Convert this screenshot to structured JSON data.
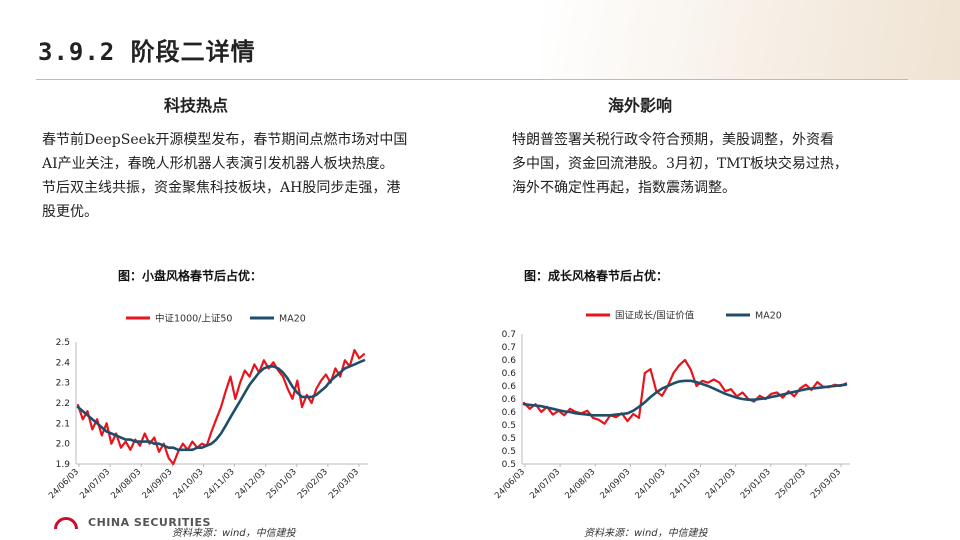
{
  "header": {
    "section_number": "3.9.2",
    "title": "阶段二详情"
  },
  "left": {
    "heading": "科技热点",
    "paragraph_lines": [
      "春节前DeepSeek开源模型发布，春节期间点燃市场对中国",
      "AI产业关注，春晚人形机器人表演引发机器人板块热度。",
      "节后双主线共振，资金聚焦科技板块，AH股同步走强，港",
      "股更优。"
    ],
    "figure_caption": "图：小盘风格春节后占优：",
    "source": "资料来源：wind，中信建投"
  },
  "right": {
    "heading": "海外影响",
    "paragraph_lines": [
      "特朗普签署关税行政令符合预期，美股调整，外资看",
      "多中国，资金回流港股。3月初，TMT板块交易过热，",
      "海外不确定性再起，指数震荡调整。"
    ],
    "figure_caption": "图：成长风格春节后占优：",
    "source": "资料来源：wind，中信建投"
  },
  "footer": {
    "logo_text": "CHINA SECURITIES"
  },
  "colors": {
    "ratio_line": "#e8141c",
    "ma20_line": "#1f4e6b"
  },
  "chart_data": [
    {
      "type": "line",
      "title": "",
      "ylim": [
        1.9,
        2.5
      ],
      "y_ticks": [
        "1.9",
        "2.0",
        "2.1",
        "2.2",
        "2.3",
        "2.4",
        "2.5"
      ],
      "x_ticks": [
        "24/06/03",
        "24/07/03",
        "24/08/03",
        "24/09/03",
        "24/10/03",
        "24/11/03",
        "24/12/03",
        "25/01/03",
        "25/02/03",
        "25/03/03"
      ],
      "series": [
        {
          "name": "中证1000/上证50",
          "color": "#e8141c",
          "values": [
            2.19,
            2.12,
            2.16,
            2.07,
            2.12,
            2.04,
            2.1,
            2.0,
            2.05,
            1.98,
            2.01,
            1.97,
            2.02,
            1.99,
            2.05,
            2.0,
            2.03,
            1.96,
            2.0,
            1.93,
            1.9,
            1.96,
            2.0,
            1.97,
            2.01,
            1.98,
            2.0,
            1.99,
            2.06,
            2.12,
            2.18,
            2.26,
            2.33,
            2.22,
            2.3,
            2.36,
            2.33,
            2.39,
            2.35,
            2.41,
            2.37,
            2.4,
            2.36,
            2.33,
            2.27,
            2.22,
            2.31,
            2.18,
            2.24,
            2.2,
            2.27,
            2.31,
            2.34,
            2.3,
            2.37,
            2.33,
            2.41,
            2.38,
            2.46,
            2.42,
            2.44
          ]
        },
        {
          "name": "MA20",
          "color": "#1f4e6b",
          "values": [
            2.18,
            2.16,
            2.14,
            2.12,
            2.1,
            2.08,
            2.06,
            2.05,
            2.04,
            2.03,
            2.02,
            2.02,
            2.01,
            2.01,
            2.01,
            2.01,
            2.0,
            2.0,
            1.99,
            1.98,
            1.98,
            1.97,
            1.97,
            1.97,
            1.97,
            1.98,
            1.98,
            1.99,
            2.0,
            2.02,
            2.05,
            2.09,
            2.13,
            2.17,
            2.21,
            2.25,
            2.29,
            2.32,
            2.35,
            2.37,
            2.38,
            2.38,
            2.37,
            2.35,
            2.32,
            2.28,
            2.25,
            2.23,
            2.23,
            2.23,
            2.24,
            2.26,
            2.28,
            2.31,
            2.33,
            2.35,
            2.37,
            2.38,
            2.39,
            2.4,
            2.41
          ]
        }
      ]
    },
    {
      "type": "line",
      "title": "",
      "ylim": [
        0.5,
        0.7
      ],
      "y_ticks": [
        "0.5",
        "0.5",
        "0.5",
        "0.5",
        "0.6",
        "0.6",
        "0.6",
        "0.6",
        "0.6",
        "0.7",
        "0.7"
      ],
      "x_ticks": [
        "24/06/03",
        "24/07/03",
        "24/08/03",
        "24/09/03",
        "24/10/03",
        "24/11/03",
        "24/12/03",
        "25/01/03",
        "25/02/03",
        "25/03/03"
      ],
      "series": [
        {
          "name": "国证成长/国证价值",
          "color": "#e8141c",
          "values": [
            0.594,
            0.585,
            0.592,
            0.58,
            0.588,
            0.576,
            0.582,
            0.575,
            0.585,
            0.58,
            0.578,
            0.582,
            0.571,
            0.568,
            0.562,
            0.575,
            0.572,
            0.578,
            0.566,
            0.577,
            0.571,
            0.64,
            0.646,
            0.612,
            0.605,
            0.62,
            0.64,
            0.652,
            0.66,
            0.645,
            0.62,
            0.628,
            0.625,
            0.63,
            0.625,
            0.612,
            0.615,
            0.604,
            0.61,
            0.6,
            0.596,
            0.605,
            0.6,
            0.608,
            0.61,
            0.602,
            0.612,
            0.604,
            0.616,
            0.622,
            0.614,
            0.626,
            0.619,
            0.618,
            0.622,
            0.62,
            0.624
          ]
        },
        {
          "name": "MA20",
          "color": "#1f4e6b",
          "values": [
            0.592,
            0.591,
            0.59,
            0.589,
            0.587,
            0.585,
            0.583,
            0.581,
            0.58,
            0.578,
            0.577,
            0.576,
            0.575,
            0.575,
            0.575,
            0.575,
            0.576,
            0.577,
            0.578,
            0.582,
            0.588,
            0.595,
            0.603,
            0.61,
            0.616,
            0.62,
            0.624,
            0.627,
            0.628,
            0.628,
            0.626,
            0.623,
            0.62,
            0.616,
            0.612,
            0.608,
            0.605,
            0.602,
            0.6,
            0.599,
            0.599,
            0.6,
            0.601,
            0.603,
            0.605,
            0.607,
            0.609,
            0.611,
            0.613,
            0.615,
            0.616,
            0.617,
            0.618,
            0.619,
            0.62,
            0.621,
            0.622
          ]
        }
      ]
    }
  ]
}
